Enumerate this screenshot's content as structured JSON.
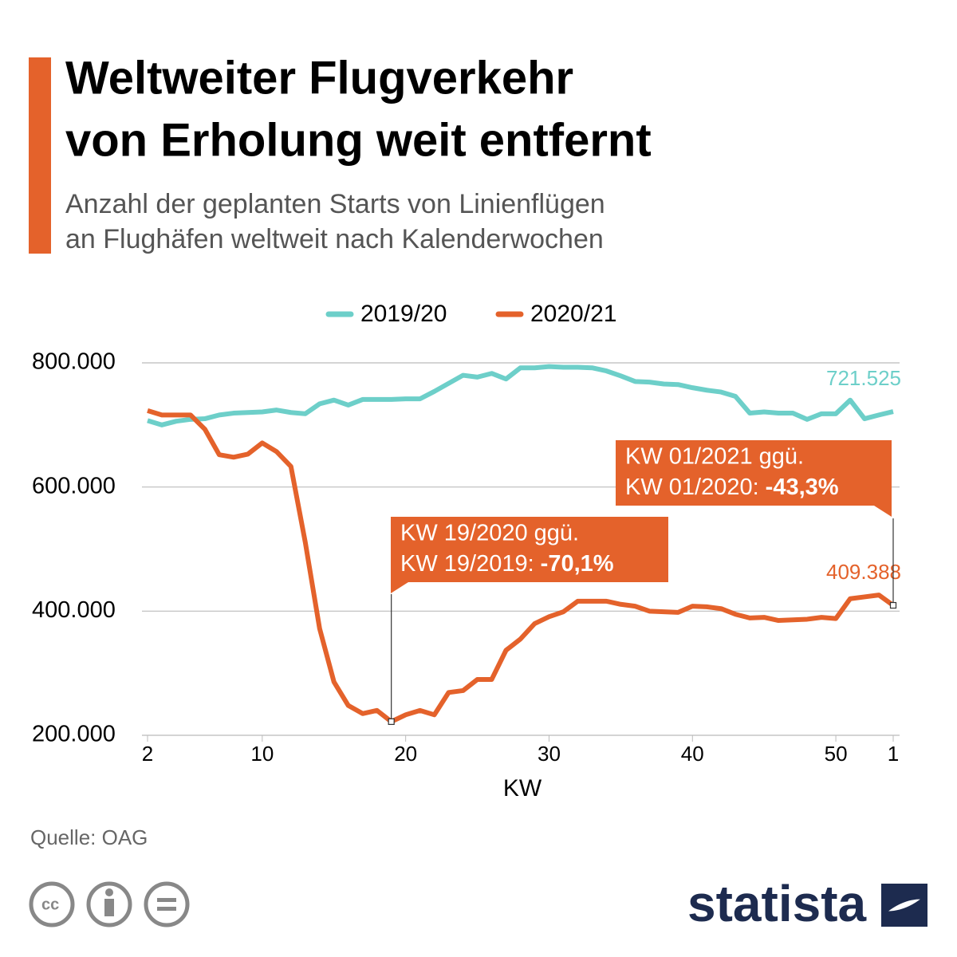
{
  "chart_data": {
    "type": "line",
    "title": [
      "Weltweiter Flugverkehr",
      "von Erholung weit entfernt"
    ],
    "subtitle": [
      "Anzahl der geplanten Starts von Linienflügen",
      "an Flughäfen weltweit nach Kalenderwochen"
    ],
    "x_label": "KW",
    "categories": [
      "2",
      null,
      null,
      null,
      null,
      null,
      null,
      null,
      "10",
      null,
      null,
      null,
      null,
      null,
      null,
      null,
      null,
      null,
      "20",
      null,
      null,
      null,
      null,
      null,
      null,
      null,
      null,
      null,
      "30",
      null,
      null,
      null,
      null,
      null,
      null,
      null,
      null,
      null,
      "40",
      null,
      null,
      null,
      null,
      null,
      null,
      null,
      null,
      null,
      "50",
      null,
      null,
      null,
      "1"
    ],
    "series": [
      {
        "name": "2019/20",
        "color": "#6dcfc9",
        "values": [
          707000,
          700000,
          706000,
          709000,
          710000,
          716000,
          719000,
          720000,
          721000,
          724000,
          720000,
          718000,
          734000,
          740000,
          732000,
          741000,
          741000,
          741000,
          742000,
          742000,
          754000,
          767000,
          780000,
          777000,
          783000,
          774000,
          792000,
          792000,
          794000,
          793000,
          793000,
          792000,
          787000,
          779000,
          770000,
          769000,
          766000,
          765000,
          760000,
          756000,
          753000,
          746000,
          719000,
          721000,
          719000,
          719000,
          709000,
          718000,
          718000,
          740000,
          710000,
          716000,
          721525
        ],
        "value_labels": [
          null,
          null,
          null,
          null,
          null,
          null,
          null,
          null,
          null,
          null,
          null,
          null,
          null,
          null,
          null,
          null,
          null,
          null,
          null,
          null,
          null,
          null,
          null,
          null,
          null,
          null,
          null,
          null,
          null,
          null,
          null,
          null,
          null,
          null,
          null,
          null,
          null,
          null,
          null,
          null,
          null,
          null,
          null,
          null,
          null,
          null,
          null,
          null,
          null,
          null,
          null,
          null,
          "721.525"
        ]
      },
      {
        "name": "2020/21",
        "color": "#e4622b",
        "values": [
          723000,
          716000,
          716000,
          716000,
          693000,
          652000,
          648000,
          653000,
          671000,
          657000,
          633000,
          511000,
          372000,
          286000,
          248000,
          235000,
          240000,
          222000,
          233000,
          240000,
          233000,
          269000,
          272000,
          290000,
          290000,
          337000,
          355000,
          380000,
          391000,
          399000,
          416000,
          416000,
          416000,
          411000,
          408000,
          400000,
          399000,
          398000,
          408000,
          407000,
          404000,
          395000,
          389000,
          390000,
          385000,
          386000,
          387000,
          390000,
          388000,
          420000,
          423000,
          426000,
          409388
        ],
        "value_labels": [
          null,
          null,
          null,
          null,
          null,
          null,
          null,
          null,
          null,
          null,
          null,
          null,
          null,
          null,
          null,
          null,
          null,
          null,
          null,
          null,
          null,
          null,
          null,
          null,
          null,
          null,
          null,
          null,
          null,
          null,
          null,
          null,
          null,
          null,
          null,
          null,
          null,
          null,
          null,
          null,
          null,
          null,
          null,
          null,
          null,
          null,
          null,
          null,
          null,
          null,
          null,
          null,
          "409.388"
        ]
      }
    ],
    "ylim": [
      200000,
      800000
    ],
    "yticks": [
      {
        "value": 200000,
        "label": "200.000"
      },
      {
        "value": 400000,
        "label": "400.000"
      },
      {
        "value": 600000,
        "label": "600.000"
      },
      {
        "value": 800000,
        "label": "800.000"
      }
    ],
    "grid": true,
    "annotations": [
      {
        "lines": [
          "KW 19/2020 ggü.",
          "KW 19/2019:"
        ],
        "highlight": "-70,1%"
      },
      {
        "lines": [
          "KW 01/2021 ggü.",
          "KW 01/2020:"
        ],
        "highlight": "-43,3%"
      }
    ],
    "source": "Quelle: OAG",
    "brand": "statista"
  }
}
